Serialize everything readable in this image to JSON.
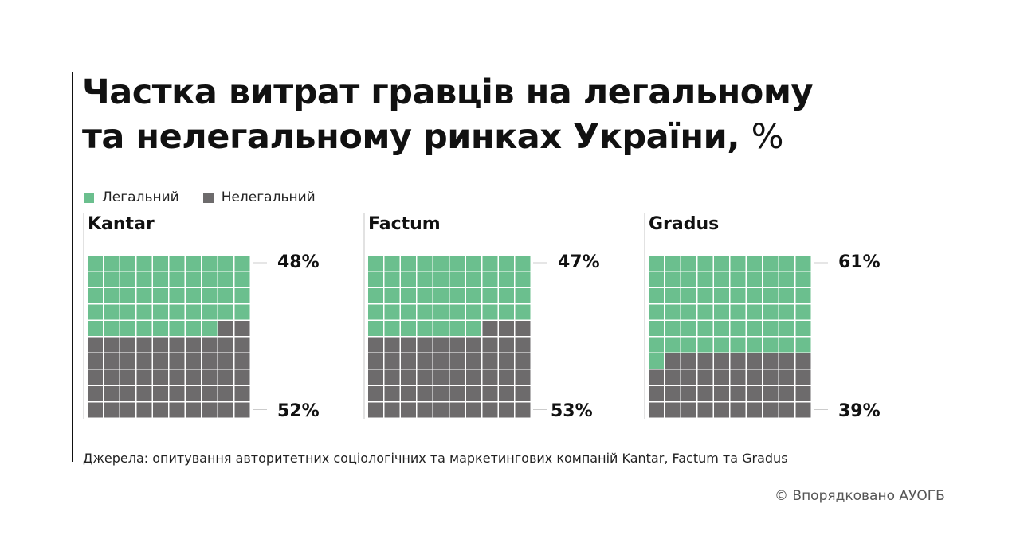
{
  "title_line1": "Частка витрат гравців на легальному",
  "title_line2": "та нелегальному ринках України,",
  "title_unit": "%",
  "legend": [
    {
      "label": "Легальний",
      "color": "#6bbf8e"
    },
    {
      "label": "Нелегальний",
      "color": "#6d6b6c"
    }
  ],
  "chart_data": [
    {
      "type": "waffle",
      "title": "Kantar",
      "grid": [
        10,
        10
      ],
      "series": [
        {
          "name": "Легальний",
          "value": 48,
          "label": "48%"
        },
        {
          "name": "Нелегальний",
          "value": 52,
          "label": "52%"
        }
      ]
    },
    {
      "type": "waffle",
      "title": "Factum",
      "grid": [
        10,
        10
      ],
      "series": [
        {
          "name": "Легальний",
          "value": 47,
          "label": "47%"
        },
        {
          "name": "Нелегальний",
          "value": 53,
          "label": "53%"
        }
      ]
    },
    {
      "type": "waffle",
      "title": "Gradus",
      "grid": [
        10,
        10
      ],
      "series": [
        {
          "name": "Легальний",
          "value": 61,
          "label": "61%"
        },
        {
          "name": "Нелегальний",
          "value": 39,
          "label": "39%"
        }
      ]
    }
  ],
  "source": "Джерела: опитування авторитетних соціологічних та маркетингових компаній Kantar, Factum та Gradus",
  "credit": "© Впорядковано АУОГБ"
}
